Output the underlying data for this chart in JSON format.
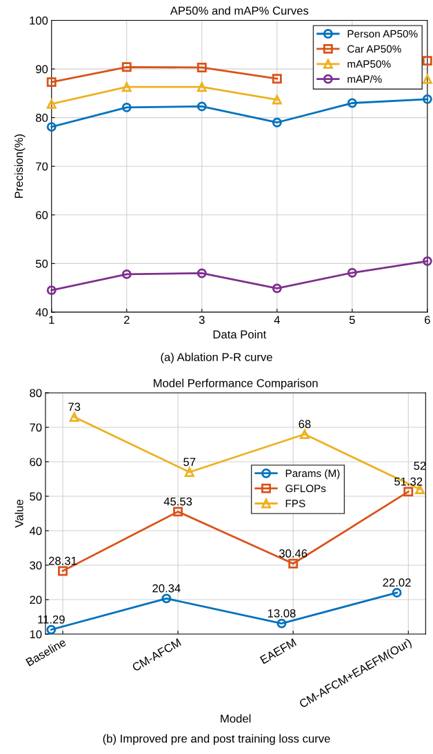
{
  "chart_data": [
    {
      "type": "line",
      "title": "AP50% and mAP% Curves",
      "xlabel": "Data Point",
      "ylabel": "Precision(%)",
      "x": [
        1,
        2,
        3,
        4,
        5,
        6
      ],
      "series": [
        {
          "name": "Person AP50%",
          "color": "#0072bd",
          "marker": "circle",
          "values": [
            78.1,
            82.1,
            82.3,
            79.0,
            83.0,
            83.8
          ]
        },
        {
          "name": "Car AP50%",
          "color": "#d95319",
          "marker": "square",
          "values": [
            87.3,
            90.4,
            90.3,
            88.0,
            null,
            91.7
          ]
        },
        {
          "name": "mAP50%",
          "color": "#edb120",
          "marker": "triangle",
          "values": [
            82.8,
            86.3,
            86.3,
            83.7,
            null,
            87.9
          ]
        },
        {
          "name": "mAP/%",
          "color": "#7e2f8e",
          "marker": "circle",
          "values": [
            44.5,
            47.8,
            48.0,
            44.9,
            48.1,
            50.5
          ]
        }
      ],
      "xlim": [
        1,
        6
      ],
      "xticks": [
        1,
        2,
        3,
        4,
        5,
        6
      ],
      "ylim": [
        40,
        100
      ],
      "yticks": [
        40,
        50,
        60,
        70,
        80,
        90,
        100
      ],
      "grid": true,
      "legend": "top right",
      "line_style": "solid",
      "annotations": [
        "(a) Ablation P-R curve"
      ]
    },
    {
      "type": "line",
      "title": "Model Performance Comparison",
      "xlabel": "Model",
      "ylabel": "Value",
      "series": [
        {
          "name": "Params (M)",
          "color": "#0072bd",
          "marker": "circle",
          "values": [
            11.29,
            20.34,
            13.08,
            22.02
          ]
        },
        {
          "name": "GFLOPs",
          "color": "#d95319",
          "marker": "square",
          "values": [
            28.31,
            45.53,
            30.46,
            51.32
          ]
        },
        {
          "name": "FPS",
          "color": "#edb120",
          "marker": "triangle",
          "values": [
            73,
            57,
            68,
            52
          ]
        }
      ],
      "categories": [
        "Baseline",
        "CM-AFCM",
        "EAEFM",
        "CM-AFCM+EAEFM(Our)"
      ],
      "ylim": [
        10,
        80
      ],
      "yticks": [
        10,
        20,
        30,
        40,
        50,
        60,
        70,
        80
      ],
      "grid": true,
      "legend": "right",
      "line_style": "solid",
      "data_labels": true,
      "annotations": [
        "(b) Improved pre and post training loss curve"
      ]
    }
  ]
}
